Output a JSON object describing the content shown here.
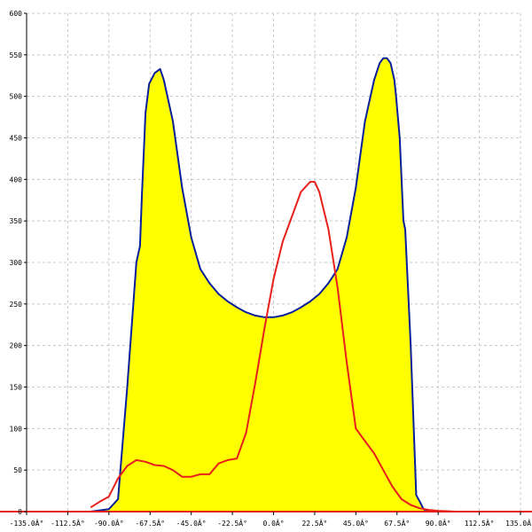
{
  "chart_data": {
    "type": "area",
    "title": "",
    "xlabel": "",
    "ylabel": "",
    "xlim": [
      -135,
      135
    ],
    "ylim": [
      0,
      600
    ],
    "grid": true,
    "x_tick_labels": [
      "-135.0Â°",
      "-112.5Â°",
      "-90.0Â°",
      "-67.5Â°",
      "-45.0Â°",
      "-22.5Â°",
      "0.0Â°",
      "22.5Â°",
      "45.0Â°",
      "67.5Â°",
      "90.0Â°",
      "112.5Â°",
      "135.0Â°"
    ],
    "x_ticks": [
      -135,
      -112.5,
      -90,
      -67.5,
      -45,
      -22.5,
      0,
      22.5,
      45,
      67.5,
      90,
      112.5,
      135
    ],
    "y_ticks": [
      0,
      50,
      100,
      150,
      200,
      250,
      300,
      350,
      400,
      450,
      500,
      550,
      600
    ],
    "series": [
      {
        "color": "#0a1f9a",
        "fill": "#ffff00",
        "x": [
          -100,
          -90,
          -85,
          -80,
          -75,
          -73,
          -72,
          -70,
          -68,
          -65,
          -62,
          -60,
          -55,
          -50,
          -45,
          -40,
          -35,
          -30,
          -25,
          -20,
          -15,
          -10,
          -5,
          0,
          5,
          10,
          15,
          20,
          25,
          30,
          35,
          40,
          45,
          50,
          55,
          58,
          60,
          62,
          64,
          66,
          67,
          69,
          71,
          72,
          75,
          78,
          80,
          82,
          85,
          90,
          100
        ],
        "y": [
          0,
          3,
          15,
          150,
          300,
          320,
          380,
          480,
          515,
          528,
          533,
          520,
          470,
          390,
          330,
          292,
          275,
          262,
          253,
          246,
          240,
          236,
          234,
          234,
          236,
          240,
          246,
          253,
          262,
          275,
          292,
          330,
          390,
          470,
          520,
          540,
          546,
          546,
          540,
          520,
          500,
          450,
          350,
          340,
          200,
          20,
          12,
          3,
          0,
          0,
          0
        ]
      },
      {
        "color": "#e8201c",
        "x": [
          -100,
          -95,
          -90,
          -85,
          -80,
          -75,
          -70,
          -65,
          -60,
          -55,
          -50,
          -45,
          -40,
          -35,
          -30,
          -25,
          -20,
          -15,
          -10,
          -5,
          0,
          5,
          10,
          15,
          20,
          22.5,
          25,
          30,
          35,
          40,
          45,
          50,
          55,
          60,
          65,
          70,
          75,
          80,
          85,
          90,
          100
        ],
        "y": [
          5,
          12,
          18,
          40,
          55,
          62,
          60,
          56,
          55,
          50,
          42,
          42,
          45,
          45,
          58,
          62,
          64,
          95,
          155,
          220,
          280,
          325,
          355,
          385,
          397,
          397,
          385,
          340,
          270,
          180,
          100,
          85,
          70,
          50,
          30,
          15,
          8,
          4,
          2,
          1,
          0
        ]
      }
    ]
  }
}
